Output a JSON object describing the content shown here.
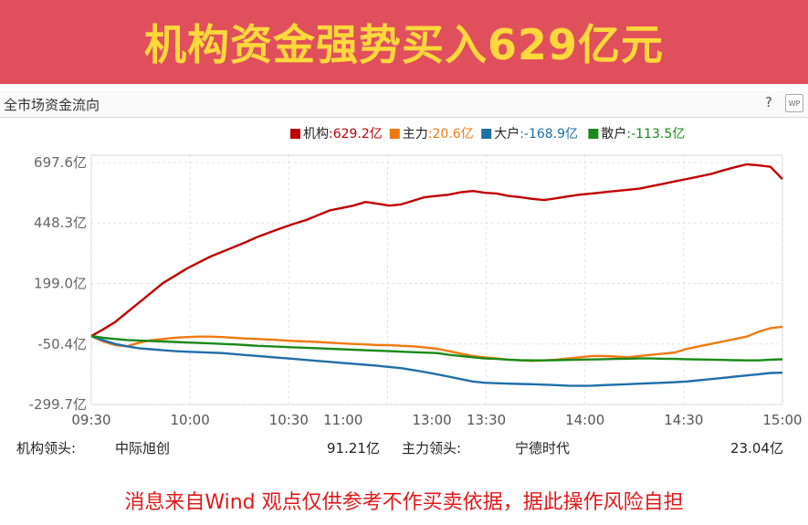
{
  "banner": {
    "title": "机构资金强势买入629亿元"
  },
  "panel": {
    "title": "全市场资金流向",
    "help_label": "?",
    "wp_label": "WP"
  },
  "colors": {
    "banner_bg": "#e0505c",
    "banner_text": "#ffd83b",
    "disclaimer": "#e01818"
  },
  "chart_data": {
    "type": "line",
    "y_ticks": [
      697.6,
      448.3,
      199.0,
      -50.4,
      -299.7
    ],
    "y_tick_labels": [
      "697.6亿",
      "448.3亿",
      "199.0亿",
      "-50.4亿",
      "-299.7亿"
    ],
    "ylim": [
      -299.7,
      697.6
    ],
    "x_tick_labels": [
      "09:30",
      "10:00",
      "10:30",
      "11:00/13:00",
      "13:30",
      "14:00",
      "14:30",
      "15:00"
    ],
    "x_tick_display": [
      "09:30",
      "10:00",
      "10:30",
      "11:00",
      "13:00",
      "13:30",
      "14:00",
      "14:30",
      "15:00"
    ],
    "grid": true,
    "legend_position": "top-right",
    "series": [
      {
        "name": "机构",
        "value_label": ":629.2亿",
        "color": "#c00000",
        "values": [
          -18,
          10,
          40,
          80,
          120,
          160,
          200,
          230,
          260,
          285,
          310,
          330,
          350,
          370,
          392,
          410,
          428,
          445,
          460,
          480,
          500,
          510,
          520,
          535,
          528,
          520,
          525,
          540,
          555,
          560,
          565,
          575,
          580,
          573,
          570,
          560,
          555,
          548,
          543,
          550,
          558,
          565,
          570,
          575,
          580,
          585,
          590,
          600,
          610,
          620,
          630,
          640,
          650,
          665,
          678,
          690,
          686,
          680,
          629
        ]
      },
      {
        "name": "主力",
        "value_label": ":20.6亿",
        "color": "#f07a10",
        "values": [
          -18,
          -40,
          -55,
          -60,
          -45,
          -35,
          -30,
          -25,
          -22,
          -20,
          -20,
          -22,
          -25,
          -28,
          -30,
          -32,
          -35,
          -38,
          -40,
          -42,
          -45,
          -48,
          -50,
          -52,
          -55,
          -55,
          -58,
          -60,
          -65,
          -70,
          -80,
          -90,
          -100,
          -105,
          -110,
          -115,
          -118,
          -120,
          -118,
          -115,
          -110,
          -105,
          -100,
          -100,
          -102,
          -105,
          -100,
          -95,
          -90,
          -85,
          -70,
          -60,
          -50,
          -40,
          -30,
          -20,
          0,
          15,
          20.6
        ]
      },
      {
        "name": "大户",
        "value_label": ":-168.9亿",
        "color": "#1f6fa8",
        "values": [
          -18,
          -35,
          -50,
          -60,
          -68,
          -72,
          -76,
          -80,
          -82,
          -84,
          -86,
          -88,
          -92,
          -96,
          -100,
          -104,
          -108,
          -112,
          -116,
          -120,
          -124,
          -128,
          -132,
          -136,
          -140,
          -145,
          -150,
          -158,
          -166,
          -175,
          -185,
          -195,
          -205,
          -210,
          -212,
          -214,
          -215,
          -216,
          -218,
          -220,
          -222,
          -223,
          -222,
          -220,
          -218,
          -216,
          -214,
          -212,
          -210,
          -208,
          -205,
          -200,
          -195,
          -190,
          -185,
          -180,
          -175,
          -170,
          -168.9
        ]
      },
      {
        "name": "散户",
        "value_label": ":-113.5亿",
        "color": "#1a8a1a",
        "values": [
          -18,
          -25,
          -30,
          -34,
          -36,
          -38,
          -40,
          -42,
          -44,
          -46,
          -48,
          -50,
          -52,
          -55,
          -58,
          -60,
          -62,
          -64,
          -66,
          -68,
          -70,
          -72,
          -74,
          -76,
          -78,
          -80,
          -82,
          -84,
          -86,
          -88,
          -95,
          -100,
          -105,
          -110,
          -112,
          -115,
          -117,
          -118,
          -118,
          -117,
          -116,
          -115,
          -114,
          -113,
          -112,
          -111,
          -110,
          -110,
          -111,
          -112,
          -113,
          -114,
          -115,
          -116,
          -117,
          -118,
          -118,
          -115,
          -113.5
        ]
      }
    ]
  },
  "footer": {
    "inst_lead_label": "机构领头:",
    "inst_lead_name": "中际旭创",
    "inst_lead_value": "91.21亿",
    "main_lead_label": "主力领头:",
    "main_lead_name": "宁德时代",
    "main_lead_value": "23.04亿"
  },
  "disclaimer": "消息来自Wind  观点仅供参考不作买卖依据，据此操作风险自担"
}
